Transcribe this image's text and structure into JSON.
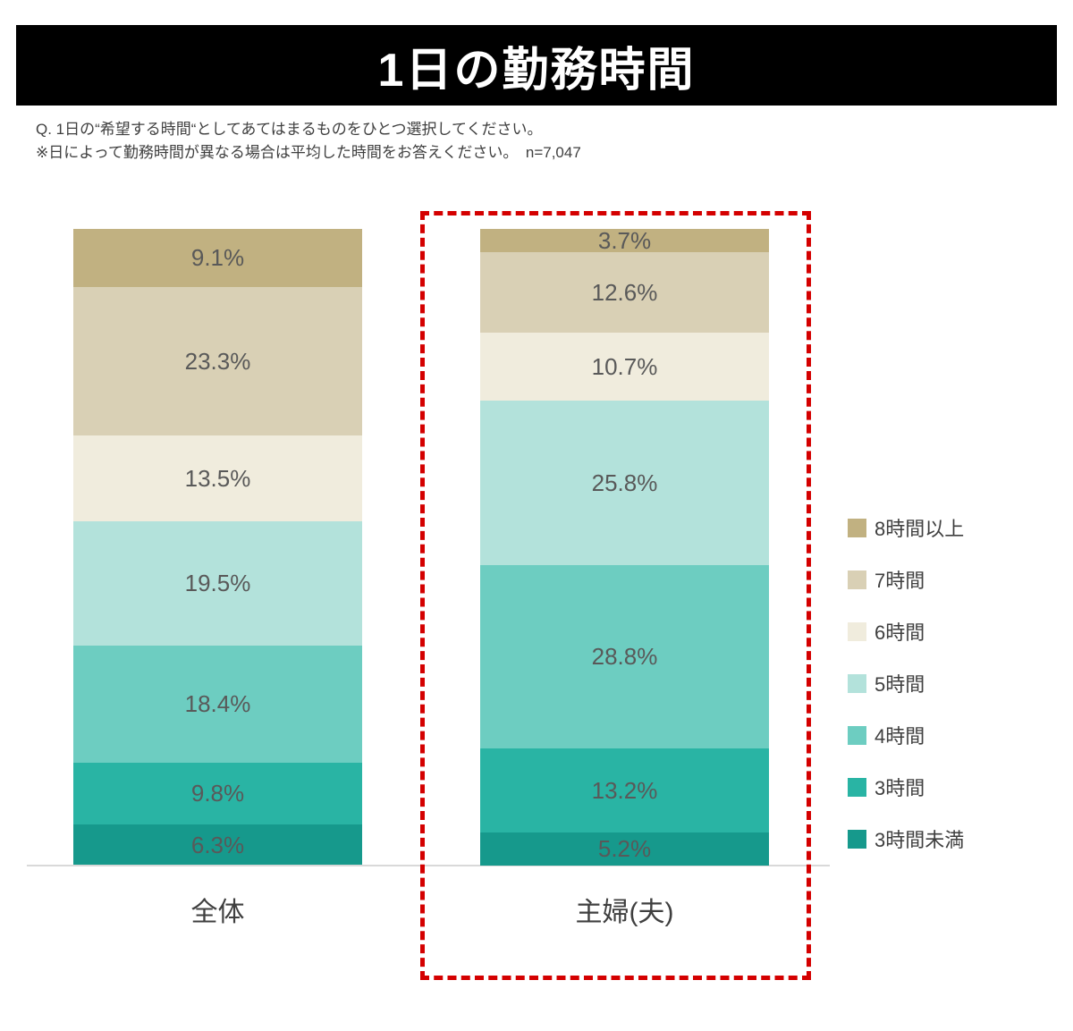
{
  "header": {
    "title": "1日の勤務時間"
  },
  "question": {
    "line1": "Q.  1日の“希望する時間“としてあてはまるものをひとつ選択してください。",
    "line2": "※日によって勤務時間が異なる場合は平均した時間をお答えください。　n=7,047"
  },
  "chart_data": {
    "type": "bar",
    "subtype": "stacked-100-percent-column",
    "title": "1日の勤務時間",
    "xlabel": "",
    "ylabel": "",
    "ylim": [
      0,
      100
    ],
    "value_suffix": "%",
    "grid": false,
    "legend_position": "right",
    "categories": [
      "全体",
      "主婦(夫)"
    ],
    "series": [
      {
        "name": "8時間以上",
        "color": "#c1b181",
        "values": [
          9.1,
          3.7
        ]
      },
      {
        "name": "7時間",
        "color": "#d9d0b5",
        "values": [
          23.3,
          12.6
        ]
      },
      {
        "name": "6時間",
        "color": "#f0ecdd",
        "values": [
          13.5,
          10.7
        ]
      },
      {
        "name": "5時間",
        "color": "#b3e2db",
        "values": [
          19.5,
          25.8
        ]
      },
      {
        "name": "4時間",
        "color": "#6dcdc1",
        "values": [
          18.4,
          28.8
        ]
      },
      {
        "name": "3時間",
        "color": "#29b4a4",
        "values": [
          9.8,
          13.2
        ]
      },
      {
        "name": "3時間未満",
        "color": "#16998c",
        "values": [
          6.3,
          5.2
        ]
      }
    ],
    "highlight": {
      "category": "主婦(夫)",
      "border_color": "#d40000",
      "border_style": "dashed"
    },
    "label_color": "#595959",
    "baseline_color": "#d9d9d9"
  }
}
